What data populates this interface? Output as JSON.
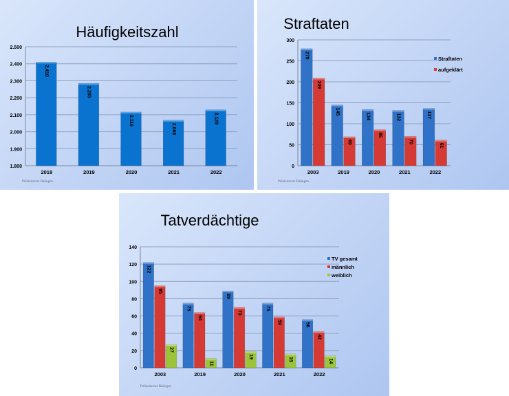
{
  "footer": "Polizeirevier Balingen",
  "colors": {
    "blue": "#2f72c8",
    "red": "#d63a35",
    "green": "#9bc43a",
    "single": "#0a73cf"
  },
  "chart_data": [
    {
      "type": "bar",
      "title": "Häufigkeitszahl",
      "categories": [
        "2018",
        "2019",
        "2020",
        "2021",
        "2022"
      ],
      "series": [
        {
          "values": [
            2410,
            2285,
            2116,
            2068,
            2129
          ],
          "labels": [
            "2.410",
            "2.285",
            "2.116",
            "2.068",
            "2.129"
          ],
          "color": "#0a73cf"
        }
      ],
      "ylim": [
        1800,
        2500
      ],
      "yticks": [
        {
          "v": 1800,
          "t": "1.800"
        },
        {
          "v": 1900,
          "t": "1.900"
        },
        {
          "v": 2000,
          "t": "2.000"
        },
        {
          "v": 2100,
          "t": "2.100"
        },
        {
          "v": 2200,
          "t": "2.200"
        },
        {
          "v": 2300,
          "t": "2.300"
        },
        {
          "v": 2400,
          "t": "2.400"
        },
        {
          "v": 2500,
          "t": "2.500"
        }
      ],
      "grid": true,
      "legend": "none"
    },
    {
      "type": "bar",
      "title": "Straftaten",
      "categories": [
        "2003",
        "2019",
        "2020",
        "2021",
        "2022"
      ],
      "series": [
        {
          "name": "Straftaten",
          "values": [
            279,
            145,
            134,
            132,
            137
          ],
          "color": "#2f72c8"
        },
        {
          "name": "aufgeklärt",
          "values": [
            209,
            69,
            86,
            70,
            61
          ],
          "color": "#d63a35"
        }
      ],
      "ylim": [
        0,
        300
      ],
      "yticks": [
        {
          "v": 0,
          "t": "0"
        },
        {
          "v": 50,
          "t": "50"
        },
        {
          "v": 100,
          "t": "100"
        },
        {
          "v": 150,
          "t": "150"
        },
        {
          "v": 200,
          "t": "200"
        },
        {
          "v": 250,
          "t": "250"
        },
        {
          "v": 300,
          "t": "300"
        }
      ],
      "grid": true,
      "legend": "right"
    },
    {
      "type": "bar",
      "title": "Tatverdächtige",
      "categories": [
        "2003",
        "2019",
        "2020",
        "2021",
        "2022"
      ],
      "series": [
        {
          "name": "TV gesamt",
          "values": [
            122,
            75,
            89,
            75,
            56
          ],
          "color": "#2f72c8"
        },
        {
          "name": "männlich",
          "values": [
            95,
            64,
            70,
            59,
            42
          ],
          "color": "#d63a35"
        },
        {
          "name": "weiblich",
          "values": [
            27,
            11,
            19,
            16,
            14
          ],
          "color": "#9bc43a"
        }
      ],
      "ylim": [
        0,
        140
      ],
      "yticks": [
        {
          "v": 0,
          "t": "0"
        },
        {
          "v": 20,
          "t": "20"
        },
        {
          "v": 40,
          "t": "40"
        },
        {
          "v": 60,
          "t": "60"
        },
        {
          "v": 80,
          "t": "80"
        },
        {
          "v": 100,
          "t": "100"
        },
        {
          "v": 120,
          "t": "120"
        },
        {
          "v": 140,
          "t": "140"
        }
      ],
      "grid": true,
      "legend": "right"
    }
  ]
}
